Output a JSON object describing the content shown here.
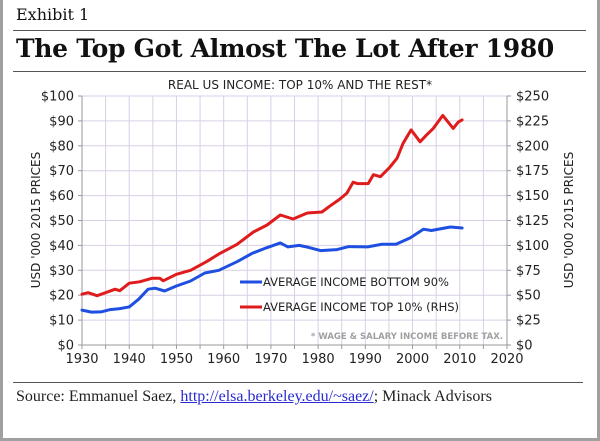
{
  "header": {
    "exhibit_label": "Exhibit 1",
    "title": "The Top Got Almost The Lot After 1980"
  },
  "footer": {
    "source_prefix": "Source: Emmanuel Saez, ",
    "source_link": "http://elsa.berkeley.edu/~saez/",
    "source_suffix": "; Minack Advisors"
  },
  "chart_data": {
    "type": "line",
    "title": "REAL US INCOME: TOP 10% AND THE REST*",
    "footnote": "* WAGE & SALARY INCOME BEFORE TAX.",
    "xlabel": "",
    "ylabel": "USD '000 2015 PRICES",
    "ylabel_right": "USD '000 2015 PRICES",
    "xlim": [
      1930,
      2020
    ],
    "ylim": [
      0,
      100
    ],
    "ylim_right": [
      0,
      250
    ],
    "x_ticks": [
      "1930",
      "1940",
      "1950",
      "1960",
      "1970",
      "1980",
      "1990",
      "2000",
      "2010",
      "2020"
    ],
    "y_ticks": [
      "$0",
      "$10",
      "$20",
      "$30",
      "$40",
      "$50",
      "$60",
      "$70",
      "$80",
      "$90",
      "$100"
    ],
    "y_ticks_right": [
      "$0",
      "$25",
      "$50",
      "$75",
      "$100",
      "$125",
      "$150",
      "$175",
      "$200",
      "$225",
      "$250"
    ],
    "grid": true,
    "legend_position": "lower-right",
    "series": [
      {
        "name": "AVERAGE INCOME BOTTOM 90%",
        "axis": "left",
        "color": "#1f4fe0",
        "points": [
          [
            1930,
            14.0
          ],
          [
            1932,
            13.2
          ],
          [
            1934,
            13.3
          ],
          [
            1936,
            14.2
          ],
          [
            1938,
            14.6
          ],
          [
            1940,
            15.3
          ],
          [
            1942,
            18.4
          ],
          [
            1944,
            22.4
          ],
          [
            1945.5,
            22.8
          ],
          [
            1947.5,
            21.7
          ],
          [
            1950,
            23.7
          ],
          [
            1953,
            25.7
          ],
          [
            1956,
            28.9
          ],
          [
            1959,
            30.0
          ],
          [
            1963,
            33.6
          ],
          [
            1966,
            36.8
          ],
          [
            1969,
            39.0
          ],
          [
            1972,
            41.0
          ],
          [
            1973.6,
            39.4
          ],
          [
            1976,
            40.0
          ],
          [
            1978,
            39.2
          ],
          [
            1980.5,
            37.9
          ],
          [
            1984,
            38.3
          ],
          [
            1986.5,
            39.5
          ],
          [
            1990.5,
            39.4
          ],
          [
            1993.5,
            40.5
          ],
          [
            1996.5,
            40.5
          ],
          [
            1999.5,
            43.0
          ],
          [
            2002.3,
            46.5
          ],
          [
            2004,
            46.0
          ],
          [
            2008,
            47.4
          ],
          [
            2010.5,
            47.0
          ]
        ]
      },
      {
        "name": "AVERAGE INCOME TOP 10% (RHS)",
        "axis": "right",
        "color": "#e01b1b",
        "points": [
          [
            1930,
            51.0
          ],
          [
            1931.3,
            52.5
          ],
          [
            1933.2,
            49.5
          ],
          [
            1935,
            52.5
          ],
          [
            1937,
            56.0
          ],
          [
            1938,
            54.5
          ],
          [
            1940,
            62.0
          ],
          [
            1942.2,
            63.5
          ],
          [
            1944.8,
            67.0
          ],
          [
            1946.5,
            67.0
          ],
          [
            1947.2,
            64.5
          ],
          [
            1950,
            71.0
          ],
          [
            1953,
            75.0
          ],
          [
            1956.5,
            84.0
          ],
          [
            1959.2,
            92.0
          ],
          [
            1962.8,
            101.0
          ],
          [
            1966.3,
            113.5
          ],
          [
            1969.2,
            120.5
          ],
          [
            1972,
            130.5
          ],
          [
            1974.7,
            126.5
          ],
          [
            1977.7,
            132.5
          ],
          [
            1980.8,
            133.5
          ],
          [
            1982.5,
            139.5
          ],
          [
            1984.6,
            146.5
          ],
          [
            1986.1,
            152.5
          ],
          [
            1987.4,
            163.5
          ],
          [
            1988.3,
            162.0
          ],
          [
            1990.6,
            162.0
          ],
          [
            1991.7,
            171.0
          ],
          [
            1993.2,
            169.0
          ],
          [
            1995.1,
            178.0
          ],
          [
            1996.7,
            187.5
          ],
          [
            1998,
            202.5
          ],
          [
            1999.7,
            216.0
          ],
          [
            2001.6,
            204.0
          ],
          [
            2003,
            211.0
          ],
          [
            2004.4,
            217.5
          ],
          [
            2006.4,
            230.5
          ],
          [
            2008.6,
            217.5
          ],
          [
            2009.7,
            224.0
          ],
          [
            2010.5,
            226.0
          ]
        ]
      }
    ]
  }
}
